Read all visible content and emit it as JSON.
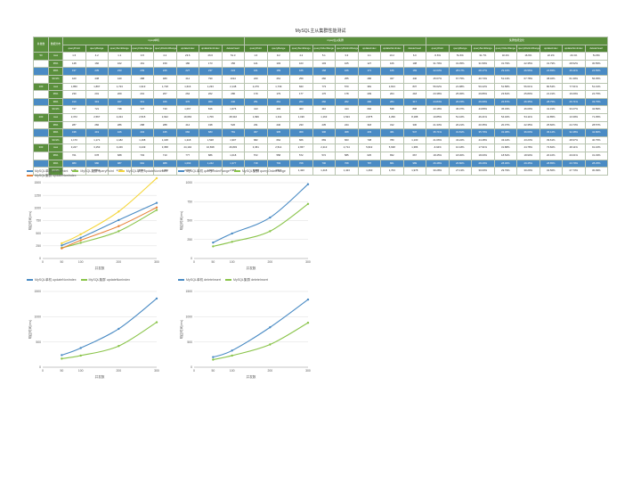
{
  "title": "MySQL主从集群性能测试",
  "table": {
    "corner": [
      "并发数",
      "数据分布"
    ],
    "groups": [
      "mysql单机",
      "mysql主从集群",
      "集群性能变化"
    ],
    "columns": [
      "queryPoint",
      "queryRange",
      "querySumRange",
      "queryOrderRange",
      "queryDistinctRange",
      "updateIndex",
      "updateNonIndex",
      "deleteInsert"
    ],
    "rows": [
      {
        "c": "50",
        "k": "max",
        "v": [
          "1.6",
          "4.2",
          "1.1",
          "3.8",
          "4.2",
          "23.6",
          "26.6",
          "51.3",
          "1.6",
          "9.2",
          "4.2",
          "5.1",
          "3.3",
          "4.1",
          "10.2",
          "6.0",
          "-5.6%",
          "51.6%",
          "31.7%",
          "32.4%",
          "16.6%",
          "22.2%",
          "20.1%",
          "51.8%"
        ]
      },
      {
        "c": "",
        "k": "95%",
        "v": [
          "148",
          "160",
          "162",
          "161",
          "159",
          "180",
          "173",
          "156",
          "121",
          "103",
          "103",
          "103",
          "105",
          "127",
          "106",
          "108",
          "31.79%",
          "31.35%",
          "31.59%",
          "31.79%",
          "22.35%",
          "31.79%",
          "28.52%",
          "30.55%"
        ]
      },
      {
        "c": "",
        "k": "99%",
        "hl": true,
        "v": [
          "197",
          "235",
          "233",
          "239",
          "226",
          "227",
          "237",
          "224",
          "161",
          "169",
          "166",
          "168",
          "166",
          "171",
          "166",
          "169",
          "22.03%",
          "28.17%",
          "28.17%",
          "29.16%",
          "26.56%",
          "24.65%",
          "29.11%",
          "24.55%"
        ]
      },
      {
        "c": "",
        "k": "99.9%",
        "v": [
          "420",
          "438",
          "440",
          "488",
          "480",
          "414",
          "790",
          "1014",
          "220",
          "261",
          "259",
          "260",
          "255",
          "286",
          "327",
          "440",
          "45.67%",
          "67.75%",
          "40.74%",
          "51.13%",
          "67.78%",
          "38.46%",
          "61.39%",
          "56.35%"
        ]
      },
      {
        "c": "100",
        "k": "max",
        "v": [
          "1,850",
          "1,897",
          "1,723",
          "1,913",
          "1,718",
          "1,616",
          "1,233",
          "2,148",
          "2,276",
          "1,739",
          "843",
          "773",
          "570",
          "381",
          "2,813",
          "837",
          "56.62%",
          "21.98%",
          "50.22%",
          "51.58%",
          "56.61%",
          "80.54%",
          "77.61%",
          "51.31%"
        ]
      },
      {
        "c": "",
        "k": "95%",
        "v": [
          "230",
          "201",
          "209",
          "201",
          "207",
          "264",
          "262",
          "280",
          "179",
          "179",
          "177",
          "176",
          "178",
          "209",
          "204",
          "218",
          "23.38%",
          "25.36%",
          "29.86%",
          "23.81%",
          "25.80%",
          "21.31%",
          "16.09%",
          "22.75%"
        ]
      },
      {
        "c": "",
        "k": "99%",
        "hl": true,
        "v": [
          "310",
          "319",
          "327",
          "319",
          "326",
          "370",
          "360",
          "440",
          "251",
          "261",
          "263",
          "260",
          "262",
          "290",
          "284",
          "317",
          "24.84%",
          "26.15%",
          "26.69%",
          "26.87%",
          "26.35%",
          "28.75%",
          "26.71%",
          "33.75%"
        ]
      },
      {
        "c": "",
        "k": "99.9%",
        "v": [
          "727",
          "721",
          "738",
          "727",
          "740",
          "1,067",
          "816",
          "1,676",
          "413",
          "403",
          "403",
          "410",
          "414",
          "692",
          "538",
          "808",
          "43.18%",
          "45.07%",
          "44.89%",
          "45.33%",
          "46.09%",
          "41.31%",
          "33.27%",
          "42.89%"
        ]
      },
      {
        "c": "200",
        "k": "max",
        "v": [
          "2,372",
          "2,567",
          "2,224",
          "2,515",
          "2,922",
          "19,663",
          "1,706",
          "28,316",
          "1,996",
          "1,311",
          "1,196",
          "1,163",
          "1,523",
          "2,875",
          "4,299",
          "8,188",
          "10.85%",
          "51.16%",
          "46.21%",
          "54.32%",
          "54.11%",
          "41.85%",
          "13.39%",
          "71.35%"
        ]
      },
      {
        "c": "",
        "k": "95%",
        "v": [
          "287",
          "282",
          "286",
          "288",
          "288",
          "414",
          "438",
          "526",
          "231",
          "240",
          "233",
          "235",
          "244",
          "318",
          "312",
          "330",
          "21.33%",
          "20.21%",
          "20.35%",
          "20.37%",
          "22.35%",
          "25.60%",
          "24.73%",
          "28.57%"
        ]
      },
      {
        "c": "",
        "k": "99%",
        "hl": true,
        "v": [
          "438",
          "419",
          "426",
          "434",
          "435",
          "682",
          "683",
          "781",
          "307",
          "305",
          "309",
          "306",
          "308",
          "433",
          "461",
          "547",
          "35.71%",
          "31.81%",
          "35.70%",
          "32.38%",
          "36.60%",
          "36.12%",
          "32.48%",
          "42.86%"
        ]
      },
      {
        "c": "",
        "k": "99.9%",
        "v": [
          "1,170",
          "1,171",
          "1,182",
          "1,168",
          "1,168",
          "1,218",
          "1,528",
          "1,907",
          "682",
          "664",
          "666",
          "669",
          "663",
          "738",
          "780",
          "1,130",
          "41.66%",
          "43.22%",
          "44.48%",
          "43.44%",
          "43.23%",
          "39.61%",
          "48.97%",
          "40.75%"
        ]
      },
      {
        "c": "300",
        "k": "max",
        "v": [
          "3,227",
          "3,153",
          "3,246",
          "3,249",
          "3,358",
          "24,194",
          "16,838",
          "26,803",
          "3,451",
          "2,514",
          "2,657",
          "2,213",
          "2,714",
          "5,822",
          "5,638",
          "1,386",
          "-6.94%",
          "10.18%",
          "17.91%",
          "31.88%",
          "44.78%",
          "73.82%",
          "48.11%",
          "91.16%"
        ]
      },
      {
        "c": "",
        "k": "95%",
        "v": [
          "701",
          "678",
          "688",
          "703",
          "710",
          "777",
          "886",
          "1,018",
          "572",
          "558",
          "572",
          "572",
          "585",
          "625",
          "652",
          "667",
          "18.45%",
          "18.30%",
          "18.00%",
          "18.52%",
          "18.90%",
          "20.10%",
          "20.01%",
          "31.33%"
        ]
      },
      {
        "c": "",
        "k": "99%",
        "hl": true,
        "v": [
          "980",
          "980",
          "987",
          "962",
          "988",
          "1,093",
          "1,242",
          "1,377",
          "718",
          "703",
          "708",
          "700",
          "708",
          "787",
          "861",
          "989",
          "26.48%",
          "26.80%",
          "28.29%",
          "28.30%",
          "29.45%",
          "28.85%",
          "23.79%",
          "28.25%"
        ]
      },
      {
        "c": "",
        "k": "99.9%",
        "v": [
          "2,281",
          "2,063",
          "2,065",
          "2,017",
          "2,056",
          "2,066",
          "2,593",
          "2,988",
          "1,494",
          "1,507",
          "1,420",
          "1,418",
          "1,423",
          "1,460",
          "1,703",
          "1,978",
          "30.28%",
          "27.13%",
          "30.00%",
          "29.79%",
          "30.20%",
          "32.56%",
          "27.73%",
          "30.09%"
        ]
      }
    ]
  },
  "charts": [
    {
      "legend": [
        "MySQL单机 queryPoint",
        "MySQL集群 queryPoint",
        "MySQL单机 updateNonIndex",
        "MySQL集群 updateNonIndex"
      ],
      "colors": [
        "#4a8bc4",
        "#8ac44a",
        "#f5d63a",
        "#e8823a"
      ],
      "ylabel": "响应时间(ms)",
      "xlabel": "并发数",
      "x": [
        50,
        100,
        200,
        300
      ],
      "ylim": [
        0,
        1500
      ],
      "yticks": [
        0,
        250,
        500,
        750,
        1000,
        1250,
        1500
      ],
      "series": [
        {
          "name": "MySQL单机 queryPoint",
          "values": [
            260,
            410,
            760,
            1100
          ]
        },
        {
          "name": "MySQL集群 queryPoint",
          "values": [
            210,
            310,
            540,
            960
          ]
        },
        {
          "name": "MySQL单机 updateNonIndex",
          "values": [
            300,
            480,
            930,
            1590
          ]
        },
        {
          "name": "MySQL集群 updateNonIndex",
          "values": [
            200,
            360,
            640,
            1010
          ]
        }
      ]
    },
    {
      "legend": [
        "MySQL单机 queryOrderRange",
        "MySQL集群 queryOrderRange"
      ],
      "colors": [
        "#4a8bc4",
        "#8ac44a"
      ],
      "ylabel": "响应时间(ms)",
      "xlabel": "并发数",
      "x": [
        50,
        100,
        200,
        300
      ],
      "ylim": [
        0,
        1000
      ],
      "yticks": [
        0,
        250,
        500,
        750,
        1000
      ],
      "series": [
        {
          "name": "MySQL单机 queryOrderRange",
          "values": [
            210,
            330,
            540,
            980
          ]
        },
        {
          "name": "MySQL集群 queryOrderRange",
          "values": [
            160,
            220,
            360,
            720
          ]
        }
      ]
    },
    {
      "legend": [
        "MySQL单机 updateNonIndex",
        "MySQL集群 updateNonIndex"
      ],
      "colors": [
        "#4a8bc4",
        "#8ac44a"
      ],
      "ylabel": "响应时间(ms)",
      "xlabel": "并发数",
      "x": [
        50,
        100,
        200,
        300
      ],
      "ylim": [
        0,
        1500
      ],
      "yticks": [
        0,
        500,
        1000,
        1500
      ],
      "series": [
        {
          "name": "MySQL单机 updateNonIndex",
          "values": [
            240,
            380,
            760,
            1360
          ]
        },
        {
          "name": "MySQL集群 updateNonIndex",
          "values": [
            170,
            230,
            420,
            890
          ]
        }
      ]
    },
    {
      "legend": [
        "MySQL单机 deleteInsert",
        "MySQL集群 deleteInsert"
      ],
      "colors": [
        "#4a8bc4",
        "#8ac44a"
      ],
      "ylabel": "响应时间(ms)",
      "xlabel": "并发数",
      "x": [
        50,
        100,
        200,
        300
      ],
      "ylim": [
        0,
        1500
      ],
      "yticks": [
        0,
        500,
        1000,
        1500
      ],
      "series": [
        {
          "name": "MySQL单机 deleteInsert",
          "values": [
            200,
            330,
            790,
            1340
          ]
        },
        {
          "name": "MySQL集群 deleteInsert",
          "values": [
            150,
            230,
            450,
            880
          ]
        }
      ]
    }
  ],
  "chart_data": [
    {
      "type": "line",
      "x": [
        50,
        100,
        200,
        300
      ],
      "xlabel": "并发数",
      "ylabel": "响应时间(ms)",
      "ylim": [
        0,
        1500
      ],
      "series": [
        {
          "name": "MySQL单机 queryPoint",
          "values": [
            260,
            410,
            760,
            1100
          ]
        },
        {
          "name": "MySQL集群 queryPoint",
          "values": [
            210,
            310,
            540,
            960
          ]
        },
        {
          "name": "MySQL单机 updateNonIndex",
          "values": [
            300,
            480,
            930,
            1590
          ]
        },
        {
          "name": "MySQL集群 updateNonIndex",
          "values": [
            200,
            360,
            640,
            1010
          ]
        }
      ],
      "grid": true,
      "legend": "top-left"
    },
    {
      "type": "line",
      "x": [
        50,
        100,
        200,
        300
      ],
      "xlabel": "并发数",
      "ylabel": "响应时间(ms)",
      "ylim": [
        0,
        1000
      ],
      "series": [
        {
          "name": "MySQL单机 queryOrderRange",
          "values": [
            210,
            330,
            540,
            980
          ]
        },
        {
          "name": "MySQL集群 queryOrderRange",
          "values": [
            160,
            220,
            360,
            720
          ]
        }
      ],
      "grid": true,
      "legend": "top-left"
    },
    {
      "type": "line",
      "x": [
        50,
        100,
        200,
        300
      ],
      "xlabel": "并发数",
      "ylabel": "响应时间(ms)",
      "ylim": [
        0,
        1500
      ],
      "series": [
        {
          "name": "MySQL单机 updateNonIndex",
          "values": [
            240,
            380,
            760,
            1360
          ]
        },
        {
          "name": "MySQL集群 updateNonIndex",
          "values": [
            170,
            230,
            420,
            890
          ]
        }
      ],
      "grid": true,
      "legend": "top-left"
    },
    {
      "type": "line",
      "x": [
        50,
        100,
        200,
        300
      ],
      "xlabel": "并发数",
      "ylabel": "响应时间(ms)",
      "ylim": [
        0,
        1500
      ],
      "series": [
        {
          "name": "MySQL单机 deleteInsert",
          "values": [
            200,
            330,
            790,
            1340
          ]
        },
        {
          "name": "MySQL集群 deleteInsert",
          "values": [
            150,
            230,
            450,
            880
          ]
        }
      ],
      "grid": true,
      "legend": "top-left"
    }
  ]
}
